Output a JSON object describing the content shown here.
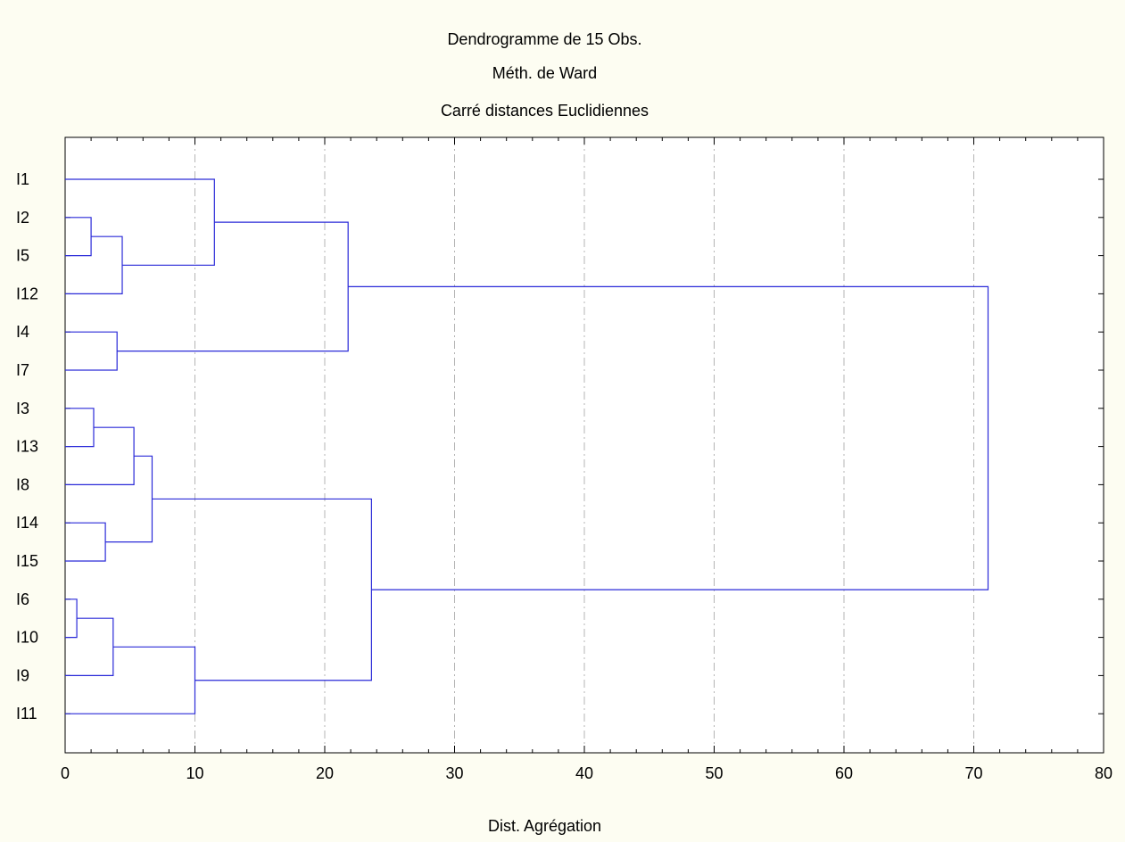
{
  "chart_data": {
    "type": "dendrogram",
    "title": "Dendrogramme de 15 Obs.",
    "subtitle": "Méth. de Ward",
    "subtitle2": "Carré distances Euclidiennes",
    "xlabel": "Dist. Agrégation",
    "ylabel": "",
    "xlim": [
      0,
      80
    ],
    "x_ticks": [
      0,
      10,
      20,
      30,
      40,
      50,
      60,
      70,
      80
    ],
    "grid": "vertical dashed",
    "leaves": [
      "I1",
      "I2",
      "I5",
      "I12",
      "I4",
      "I7",
      "I3",
      "I13",
      "I8",
      "I14",
      "I15",
      "I6",
      "I10",
      "I9",
      "I11"
    ],
    "merges": [
      {
        "left": "I6",
        "right": "I10",
        "distance": 0.9
      },
      {
        "left": "I2",
        "right": "I5",
        "distance": 2.0
      },
      {
        "left": "I3",
        "right": "I13",
        "distance": 2.2
      },
      {
        "left": "I14",
        "right": "I15",
        "distance": 3.1
      },
      {
        "left": "I6+I10",
        "right": "I9",
        "distance": 3.7
      },
      {
        "left": "I4",
        "right": "I7",
        "distance": 4.0
      },
      {
        "left": "I2+I5",
        "right": "I12",
        "distance": 4.4
      },
      {
        "left": "I3+I13",
        "right": "I8",
        "distance": 5.3
      },
      {
        "left": "I3+I13+I8",
        "right": "I14+I15",
        "distance": 6.7
      },
      {
        "left": "I6+I10+I9",
        "right": "I11",
        "distance": 10.0
      },
      {
        "left": "I1",
        "right": "I2+I5+I12",
        "distance": 11.5
      },
      {
        "left": "I1+I2+I5+I12",
        "right": "I4+I7",
        "distance": 21.8
      },
      {
        "left": "I3+I13+I8+I14+I15",
        "right": "I6+I10+I9+I11",
        "distance": 23.6
      },
      {
        "left": "cluster-A",
        "right": "cluster-B",
        "distance": 71.1
      }
    ]
  }
}
